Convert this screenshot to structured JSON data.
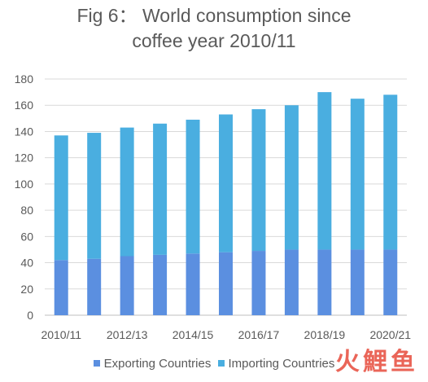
{
  "title_lines": [
    "Fig 6： World consumption since",
    "coffee year 2010/11"
  ],
  "watermark": "火鯉鱼",
  "chart_data": {
    "type": "bar",
    "stacked": true,
    "title": "Fig 6： World consumption since coffee year 2010/11",
    "categories": [
      "2010/11",
      "2011/12",
      "2012/13",
      "2013/14",
      "2014/15",
      "2015/16",
      "2016/17",
      "2017/18",
      "2018/19",
      "2019/20",
      "2020/21"
    ],
    "x_tick_labels": [
      "2010/11",
      "",
      "2012/13",
      "",
      "2014/15",
      "",
      "2016/17",
      "",
      "2018/19",
      "",
      "2020/21"
    ],
    "series": [
      {
        "name": "Exporting Countries",
        "color": "#5b8fe0",
        "values": [
          42,
          43,
          45,
          46,
          47,
          48,
          49,
          50,
          50,
          50,
          50
        ]
      },
      {
        "name": "Importing Countries",
        "color": "#4aaee0",
        "values": [
          95,
          96,
          98,
          100,
          102,
          105,
          108,
          110,
          120,
          115,
          118
        ]
      }
    ],
    "ylim": [
      0,
      180
    ],
    "yticks": [
      0,
      20,
      40,
      60,
      80,
      100,
      120,
      140,
      160,
      180
    ],
    "grid": true,
    "legend": "bottom",
    "xlabel": "",
    "ylabel": ""
  }
}
